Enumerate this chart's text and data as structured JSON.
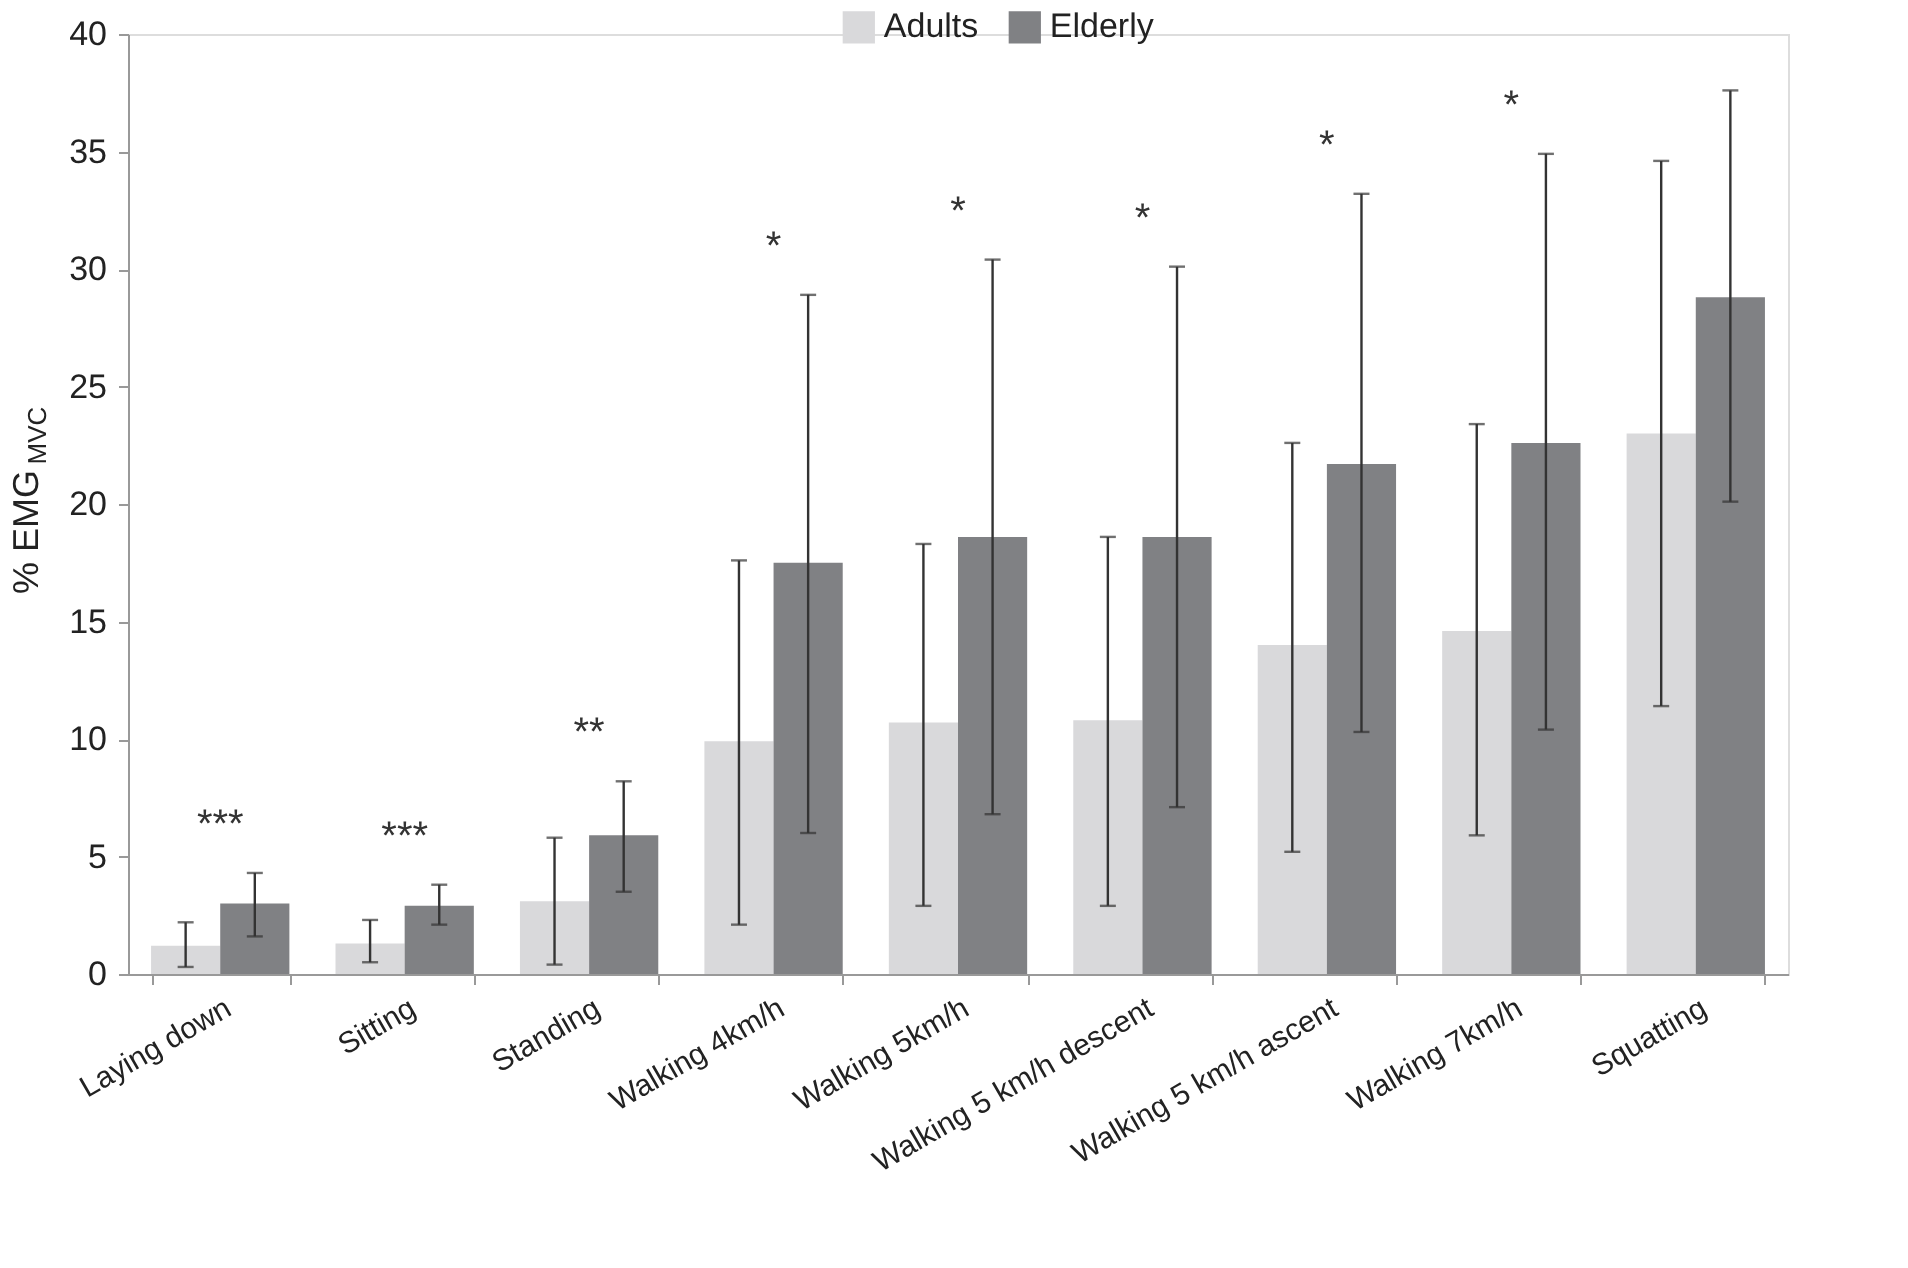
{
  "chart_data": {
    "type": "bar",
    "ylabel": "% EMG$_{MVC}$",
    "categories": [
      "Laying down",
      "Sitting",
      "Standing",
      "Walking 4km/h",
      "Walking 5km/h",
      "Walking 5 km/h descent",
      "Walking 5 km/h ascent",
      "Walking 7km/h",
      "Squatting"
    ],
    "series": [
      {
        "name": "Adults",
        "color": "#d9d9db",
        "values": [
          1.2,
          1.3,
          3.1,
          9.9,
          10.7,
          10.8,
          14.0,
          14.6,
          23.0
        ],
        "errors": [
          [
            0.3,
            2.2
          ],
          [
            0.5,
            2.3
          ],
          [
            0.4,
            5.8
          ],
          [
            2.1,
            17.6
          ],
          [
            2.9,
            18.3
          ],
          [
            2.9,
            18.6
          ],
          [
            5.2,
            22.6
          ],
          [
            5.9,
            23.4
          ],
          [
            11.4,
            34.6
          ]
        ]
      },
      {
        "name": "Elderly",
        "color": "#808184",
        "values": [
          3.0,
          2.9,
          5.9,
          17.5,
          18.6,
          18.6,
          21.7,
          22.6,
          28.8
        ],
        "errors": [
          [
            1.6,
            4.3
          ],
          [
            2.1,
            3.8
          ],
          [
            3.5,
            8.2
          ],
          [
            6.0,
            28.9
          ],
          [
            6.8,
            30.4
          ],
          [
            7.1,
            30.1
          ],
          [
            10.3,
            33.2
          ],
          [
            10.4,
            34.9
          ],
          [
            20.1,
            37.6
          ]
        ]
      }
    ],
    "ylim": [
      0,
      40
    ],
    "yticks": [
      0,
      5,
      10,
      15,
      20,
      25,
      30,
      35,
      40
    ],
    "grid": false,
    "legend": "top",
    "annotations": [
      "***",
      "***",
      "**",
      "*",
      "*",
      "*",
      "*",
      "*"
    ]
  }
}
